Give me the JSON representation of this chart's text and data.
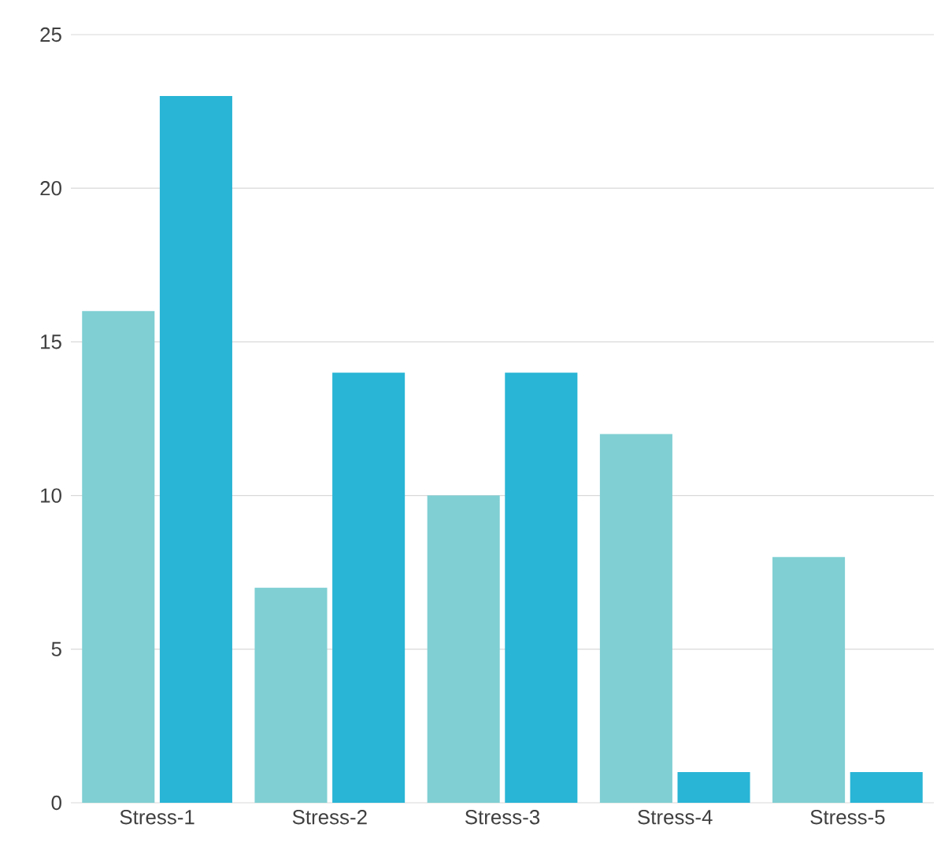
{
  "chart_data": {
    "type": "bar",
    "categories": [
      "Stress-1",
      "Stress-2",
      "Stress-3",
      "Stress-4",
      "Stress-5"
    ],
    "series": [
      {
        "color": "#7fcfd3",
        "values": [
          16,
          7,
          10,
          12,
          8
        ]
      },
      {
        "color": "#29b5d5",
        "values": [
          23,
          14,
          14,
          1,
          1
        ]
      }
    ],
    "ylim": [
      0,
      25
    ],
    "yticks": [
      0,
      5,
      10,
      15,
      20,
      25
    ],
    "grid": "y"
  }
}
